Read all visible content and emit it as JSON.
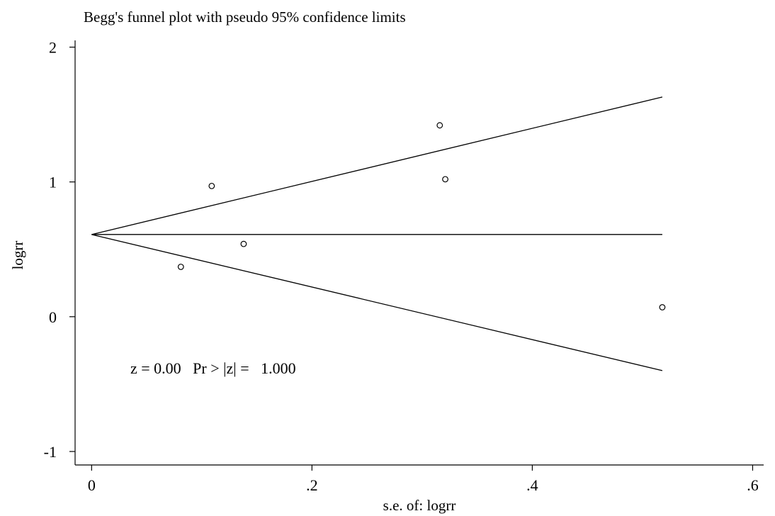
{
  "chart_data": {
    "type": "scatter",
    "title": "Begg's funnel plot with pseudo 95% confidence limits",
    "xlabel": "s.e. of: logrr",
    "ylabel": "logrr",
    "xlim": [
      -0.015,
      0.61
    ],
    "ylim": [
      -1.1,
      2.05
    ],
    "xticks": [
      0,
      0.2,
      0.4,
      0.6
    ],
    "xtick_labels": [
      "0",
      ".2",
      ".4",
      ".6"
    ],
    "yticks": [
      -1,
      0,
      1,
      2
    ],
    "ytick_labels": [
      "-1",
      "0",
      "1",
      "2"
    ],
    "points": [
      {
        "x": 0.081,
        "y": 0.37
      },
      {
        "x": 0.109,
        "y": 0.97
      },
      {
        "x": 0.138,
        "y": 0.54
      },
      {
        "x": 0.316,
        "y": 1.42
      },
      {
        "x": 0.321,
        "y": 1.02
      },
      {
        "x": 0.518,
        "y": 0.07
      }
    ],
    "pooled_estimate": 0.61,
    "upper_limit": [
      {
        "x": 0,
        "y": 0.61
      },
      {
        "x": 0.518,
        "y": 1.63
      }
    ],
    "lower_limit": [
      {
        "x": 0,
        "y": 0.61
      },
      {
        "x": 0.518,
        "y": -0.4
      }
    ],
    "annotation": "z = 0.00   Pr > |z| =   1.000",
    "grid": false,
    "legend": "none"
  }
}
